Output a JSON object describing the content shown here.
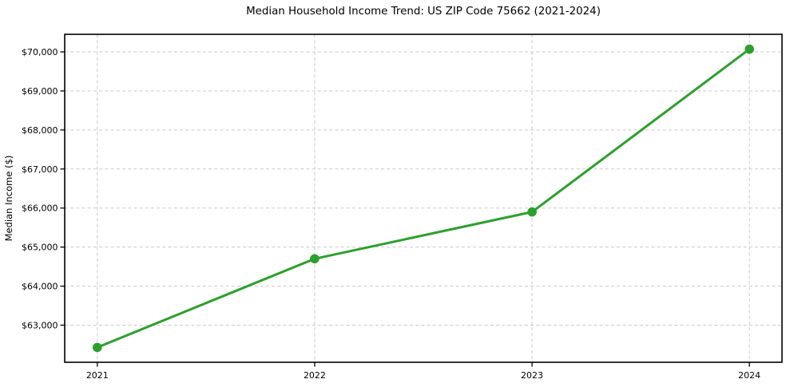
{
  "chart_data": {
    "type": "line",
    "title": "Median Household Income Trend: US ZIP Code 75662 (2021-2024)",
    "xlabel": "",
    "ylabel": "Median Income ($)",
    "x": [
      2021,
      2022,
      2023,
      2024
    ],
    "series": [
      {
        "name": "Median Household Income",
        "values": [
          62430,
          64700,
          65900,
          70070
        ],
        "color": "#2ca02c",
        "marker": "circle"
      }
    ],
    "xticks": [
      {
        "value": 2021,
        "label": "2021"
      },
      {
        "value": 2022,
        "label": "2022"
      },
      {
        "value": 2023,
        "label": "2023"
      },
      {
        "value": 2024,
        "label": "2024"
      }
    ],
    "yticks": [
      {
        "value": 63000,
        "label": "$63,000"
      },
      {
        "value": 64000,
        "label": "$64,000"
      },
      {
        "value": 65000,
        "label": "$65,000"
      },
      {
        "value": 66000,
        "label": "$66,000"
      },
      {
        "value": 67000,
        "label": "$67,000"
      },
      {
        "value": 68000,
        "label": "$68,000"
      },
      {
        "value": 69000,
        "label": "$69,000"
      },
      {
        "value": 70000,
        "label": "$70,000"
      }
    ],
    "xlim": [
      2020.85,
      2024.15
    ],
    "ylim": [
      62050,
      70450
    ],
    "grid": true,
    "grid_style": "dashed",
    "legend": "none",
    "colors": {
      "line": "#2ca02c",
      "grid": "#c9c9c9",
      "spine": "#000000",
      "background": "#ffffff",
      "text": "#000000"
    }
  }
}
